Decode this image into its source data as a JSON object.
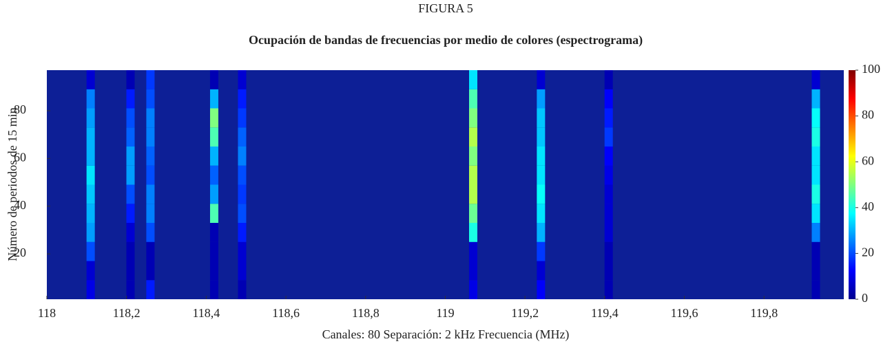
{
  "chart_data": {
    "type": "heatmap",
    "title": "FIGURA 5",
    "subtitle": "Ocupación de bandas de frecuencias por medio de colores (espectrograma)",
    "x_label": "Canales: 80   Separación: 2 kHz   Frecuencia (MHz)",
    "y_label": "Número de periodos de 15 min",
    "colormap": "jet",
    "xlim": [
      118,
      120
    ],
    "ylim": [
      1,
      97
    ],
    "xticks": [
      118,
      {
        "value": 118.2,
        "label": "118,2"
      },
      {
        "value": 118.4,
        "label": "118,4"
      },
      {
        "value": 118.6,
        "label": "118,6"
      },
      {
        "value": 118.8,
        "label": "118,8"
      },
      119,
      {
        "value": 119.2,
        "label": "119,2"
      },
      {
        "value": 119.4,
        "label": "119,4"
      },
      {
        "value": 119.6,
        "label": "119,6"
      },
      {
        "value": 119.8,
        "label": "119,8"
      }
    ],
    "yticks": [
      20,
      40,
      60,
      80
    ],
    "clim": [
      0,
      100
    ],
    "cticks": [
      0,
      20,
      40,
      60,
      80,
      100
    ],
    "x": [
      118.11,
      118.21,
      118.26,
      118.42,
      118.49,
      119.07,
      119.24,
      119.41,
      119.93
    ],
    "ybins": [
      1,
      9,
      17,
      25,
      33,
      41,
      49,
      57,
      65,
      73,
      81,
      89,
      97
    ],
    "z": [
      [
        10,
        8,
        20,
        28,
        30,
        32,
        35,
        30,
        30,
        28,
        25,
        8
      ],
      [
        5,
        5,
        5,
        8,
        15,
        20,
        28,
        28,
        22,
        20,
        15,
        5
      ],
      [
        15,
        5,
        5,
        20,
        25,
        25,
        20,
        22,
        25,
        25,
        20,
        18
      ],
      [
        5,
        5,
        5,
        5,
        45,
        28,
        22,
        30,
        45,
        50,
        30,
        5
      ],
      [
        5,
        8,
        8,
        15,
        20,
        18,
        20,
        25,
        22,
        18,
        15,
        8
      ],
      [
        10,
        8,
        8,
        40,
        48,
        55,
        55,
        50,
        55,
        50,
        45,
        35
      ],
      [
        12,
        8,
        18,
        30,
        35,
        38,
        35,
        35,
        32,
        32,
        28,
        8
      ],
      [
        5,
        5,
        5,
        8,
        8,
        8,
        10,
        12,
        18,
        15,
        12,
        5
      ],
      [
        5,
        5,
        5,
        25,
        35,
        40,
        35,
        35,
        40,
        38,
        30,
        8
      ]
    ]
  }
}
